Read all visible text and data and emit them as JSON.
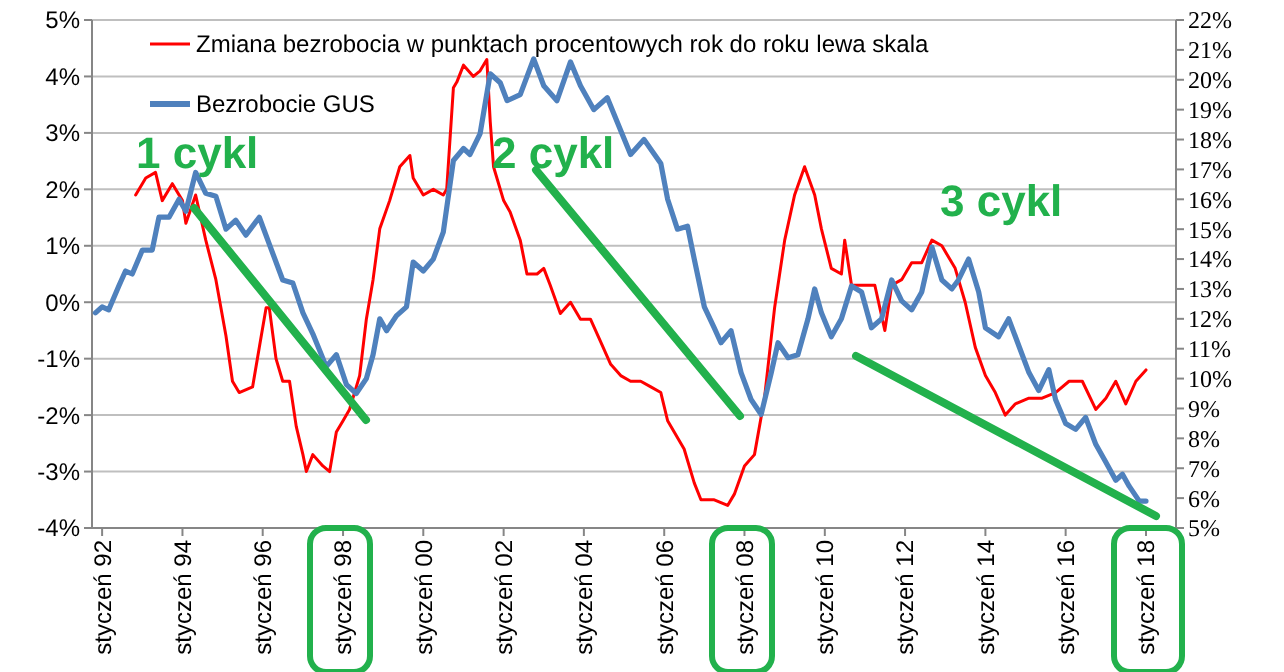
{
  "chart_data": {
    "type": "line",
    "xlim": [
      "1991-10",
      "2018-10"
    ],
    "xticks": [
      {
        "value": "1992-01",
        "label": "styczeń 92"
      },
      {
        "value": "1994-01",
        "label": "styczeń 94"
      },
      {
        "value": "1996-01",
        "label": "styczeń 96"
      },
      {
        "value": "1998-01",
        "label": "styczeń 98"
      },
      {
        "value": "2000-01",
        "label": "styczeń 00"
      },
      {
        "value": "2002-01",
        "label": "styczeń 02"
      },
      {
        "value": "2004-01",
        "label": "styczeń 04"
      },
      {
        "value": "2006-01",
        "label": "styczeń 06"
      },
      {
        "value": "2008-01",
        "label": "styczeń 08"
      },
      {
        "value": "2010-01",
        "label": "styczeń 10"
      },
      {
        "value": "2012-01",
        "label": "styczeń 12"
      },
      {
        "value": "2014-01",
        "label": "styczeń 14"
      },
      {
        "value": "2016-01",
        "label": "styczeń 16"
      },
      {
        "value": "2018-01",
        "label": "styczeń 18"
      }
    ],
    "ylim": [
      -4,
      5
    ],
    "yticks": [
      {
        "value": -4,
        "label": "-4%"
      },
      {
        "value": -3,
        "label": "-3%"
      },
      {
        "value": -2,
        "label": "-2%"
      },
      {
        "value": -1,
        "label": "-1%"
      },
      {
        "value": 0,
        "label": "0%"
      },
      {
        "value": 1,
        "label": "1%"
      },
      {
        "value": 2,
        "label": "2%"
      },
      {
        "value": 3,
        "label": "3%"
      },
      {
        "value": 4,
        "label": "4%"
      },
      {
        "value": 5,
        "label": "5%"
      }
    ],
    "y2lim": [
      5,
      22
    ],
    "y2ticks": [
      {
        "value": 5,
        "label": "5%"
      },
      {
        "value": 6,
        "label": "6%"
      },
      {
        "value": 7,
        "label": "7%"
      },
      {
        "value": 8,
        "label": "8%"
      },
      {
        "value": 9,
        "label": "9%"
      },
      {
        "value": 10,
        "label": "10%"
      },
      {
        "value": 11,
        "label": "11%"
      },
      {
        "value": 12,
        "label": "12%"
      },
      {
        "value": 13,
        "label": "13%"
      },
      {
        "value": 14,
        "label": "14%"
      },
      {
        "value": 15,
        "label": "15%"
      },
      {
        "value": 16,
        "label": "16%"
      },
      {
        "value": 17,
        "label": "17%"
      },
      {
        "value": 18,
        "label": "18%"
      },
      {
        "value": 19,
        "label": "19%"
      },
      {
        "value": 20,
        "label": "20%"
      },
      {
        "value": 21,
        "label": "21%"
      },
      {
        "value": 22,
        "label": "22%"
      }
    ],
    "grid": "y",
    "legend": "top",
    "annotations": [
      "1 cykl",
      "2 cykl",
      "3 cykl"
    ],
    "series": [
      {
        "name": "Zmiana bezrobocia w punktach procentowych rok do roku lewa skala",
        "color": "#ff0000",
        "x": [
          "1992-11",
          "1993-02",
          "1993-05",
          "1993-07",
          "1993-10",
          "1994-01",
          "1994-02",
          "1994-05",
          "1994-08",
          "1994-11",
          "1995-02",
          "1995-04",
          "1995-06",
          "1995-10",
          "1995-12",
          "1996-02",
          "1996-03",
          "1996-05",
          "1996-07",
          "1996-09",
          "1996-11",
          "1997-01",
          "1997-02",
          "1997-04",
          "1997-07",
          "1997-09",
          "1997-11",
          "1998-01",
          "1998-03",
          "1998-06",
          "1998-08",
          "1998-10",
          "1998-12",
          "1999-03",
          "1999-06",
          "1999-09",
          "1999-10",
          "2000-01",
          "2000-04",
          "2000-07",
          "2000-08",
          "2000-10",
          "2000-11",
          "2001-01",
          "2001-04",
          "2001-06",
          "2001-08",
          "2001-09",
          "2001-10",
          "2002-01",
          "2002-03",
          "2002-06",
          "2002-08",
          "2002-11",
          "2003-01",
          "2003-03",
          "2003-06",
          "2003-09",
          "2003-12",
          "2004-03",
          "2004-06",
          "2004-09",
          "2004-12",
          "2005-03",
          "2005-06",
          "2005-09",
          "2005-12",
          "2006-02",
          "2006-07",
          "2006-10",
          "2006-12",
          "2007-04",
          "2007-08",
          "2007-10",
          "2008-01",
          "2008-04",
          "2008-07",
          "2008-10",
          "2009-01",
          "2009-04",
          "2009-07",
          "2009-10",
          "2009-12",
          "2010-03",
          "2010-06",
          "2010-07",
          "2010-09",
          "2010-12",
          "2011-04",
          "2011-07",
          "2011-09",
          "2011-12",
          "2012-03",
          "2012-06",
          "2012-09",
          "2012-12",
          "2013-04",
          "2013-07",
          "2013-10",
          "2014-01",
          "2014-04",
          "2014-07",
          "2014-10",
          "2015-02",
          "2015-06",
          "2015-10",
          "2016-02",
          "2016-06",
          "2016-10",
          "2017-01",
          "2017-04",
          "2017-07",
          "2017-10",
          "2018-01"
        ],
        "values": [
          1.9,
          2.2,
          2.3,
          1.8,
          2.1,
          1.8,
          1.4,
          1.9,
          1.1,
          0.4,
          -0.6,
          -1.4,
          -1.6,
          -1.5,
          -0.8,
          -0.1,
          -0.1,
          -1.0,
          -1.4,
          -1.4,
          -2.2,
          -2.7,
          -3.0,
          -2.7,
          -2.9,
          -3.0,
          -2.3,
          -2.1,
          -1.9,
          -1.3,
          -0.3,
          0.4,
          1.3,
          1.8,
          2.4,
          2.6,
          2.2,
          1.9,
          2.0,
          1.9,
          2.0,
          3.8,
          3.9,
          4.2,
          4.0,
          4.1,
          4.3,
          3.2,
          2.4,
          1.8,
          1.6,
          1.1,
          0.5,
          0.5,
          0.6,
          0.3,
          -0.2,
          0.0,
          -0.3,
          -0.3,
          -0.7,
          -1.1,
          -1.3,
          -1.4,
          -1.4,
          -1.5,
          -1.6,
          -2.1,
          -2.6,
          -3.2,
          -3.5,
          -3.5,
          -3.6,
          -3.4,
          -2.9,
          -2.7,
          -1.7,
          -0.1,
          1.1,
          1.9,
          2.4,
          1.9,
          1.3,
          0.6,
          0.5,
          1.1,
          0.3,
          0.3,
          0.3,
          -0.5,
          0.3,
          0.4,
          0.7,
          0.7,
          1.1,
          1.0,
          0.6,
          0.0,
          -0.8,
          -1.3,
          -1.6,
          -2.0,
          -1.8,
          -1.7,
          -1.7,
          -1.6,
          -1.4,
          -1.4,
          -1.9,
          -1.7,
          -1.4,
          -1.8,
          -1.4,
          -1.2
        ]
      },
      {
        "name": "Bezrobocie GUS",
        "color": "#4f81bd",
        "axis": "y2",
        "x": [
          "1991-11",
          "1992-01",
          "1992-03",
          "1992-06",
          "1992-08",
          "1992-10",
          "1993-01",
          "1993-04",
          "1993-06",
          "1993-09",
          "1993-12",
          "1994-02",
          "1994-05",
          "1994-08",
          "1994-11",
          "1995-02",
          "1995-05",
          "1995-08",
          "1995-12",
          "1996-03",
          "1996-07",
          "1996-10",
          "1997-01",
          "1997-04",
          "1997-08",
          "1997-11",
          "1998-02",
          "1998-05",
          "1998-08",
          "1998-10",
          "1998-12",
          "1999-02",
          "1999-05",
          "1999-08",
          "1999-10",
          "2000-01",
          "2000-04",
          "2000-07",
          "2000-10",
          "2001-01",
          "2001-03",
          "2001-06",
          "2001-09",
          "2001-12",
          "2002-02",
          "2002-06",
          "2002-10",
          "2003-01",
          "2003-05",
          "2003-09",
          "2003-12",
          "2004-04",
          "2004-08",
          "2004-12",
          "2005-03",
          "2005-07",
          "2005-12",
          "2006-02",
          "2006-05",
          "2006-08",
          "2006-10",
          "2007-01",
          "2007-04",
          "2007-06",
          "2007-09",
          "2007-12",
          "2008-03",
          "2008-06",
          "2008-09",
          "2008-11",
          "2009-02",
          "2009-05",
          "2009-08",
          "2009-10",
          "2009-12",
          "2010-03",
          "2010-06",
          "2010-09",
          "2010-12",
          "2011-03",
          "2011-06",
          "2011-09",
          "2011-12",
          "2012-03",
          "2012-06",
          "2012-09",
          "2012-12",
          "2013-03",
          "2013-05",
          "2013-08",
          "2013-11",
          "2014-01",
          "2014-05",
          "2014-08",
          "2014-11",
          "2015-02",
          "2015-05",
          "2015-08",
          "2015-10",
          "2016-01",
          "2016-04",
          "2016-07",
          "2016-10",
          "2017-01",
          "2017-04",
          "2017-06",
          "2017-08",
          "2017-11",
          "2018-01"
        ],
        "values": [
          12.2,
          12.4,
          12.3,
          13.1,
          13.6,
          13.5,
          14.3,
          14.3,
          15.4,
          15.4,
          16.0,
          15.6,
          16.9,
          16.2,
          16.1,
          15.0,
          15.3,
          14.8,
          15.4,
          14.5,
          13.3,
          13.2,
          12.2,
          11.5,
          10.4,
          10.8,
          9.8,
          9.5,
          10.0,
          10.8,
          12.0,
          11.6,
          12.1,
          12.4,
          13.9,
          13.6,
          14.0,
          14.9,
          17.3,
          17.7,
          17.5,
          18.2,
          20.2,
          19.9,
          19.3,
          19.5,
          20.7,
          19.8,
          19.3,
          20.6,
          19.8,
          19.0,
          19.4,
          18.3,
          17.5,
          18.0,
          17.2,
          16.0,
          15.0,
          15.1,
          14.0,
          12.4,
          11.7,
          11.2,
          11.6,
          10.2,
          9.3,
          8.8,
          10.2,
          11.2,
          10.7,
          10.8,
          12.0,
          13.0,
          12.2,
          11.4,
          12.0,
          13.1,
          12.9,
          11.7,
          12.0,
          13.3,
          12.6,
          12.3,
          12.9,
          14.4,
          13.3,
          13.0,
          13.3,
          14.0,
          12.9,
          11.7,
          11.4,
          12.0,
          11.1,
          10.2,
          9.6,
          10.3,
          9.3,
          8.5,
          8.3,
          8.7,
          7.8,
          7.2,
          6.6,
          6.8,
          6.4,
          5.9,
          5.9
        ]
      }
    ]
  }
}
